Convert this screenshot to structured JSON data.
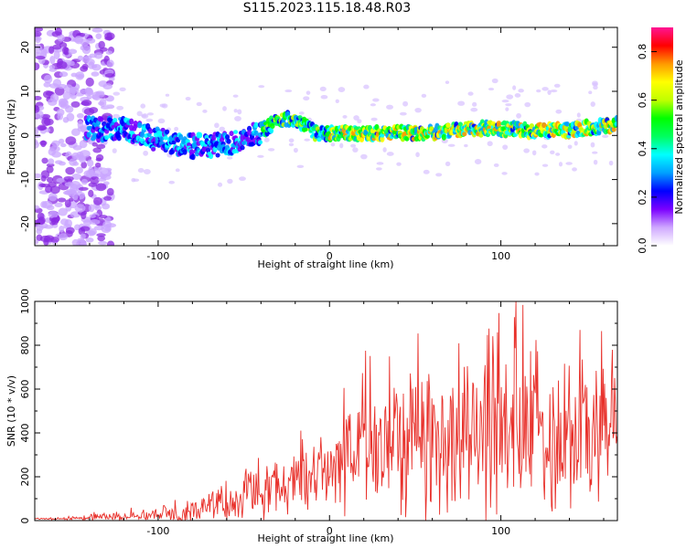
{
  "title": "S115.2023.115.18.48.R03",
  "chart_data": [
    {
      "type": "heatmap",
      "xlabel": "Height of straight line (km)",
      "ylabel": "Frequency (Hz)",
      "xlim": [
        -172,
        168
      ],
      "ylim": [
        -25,
        24.5
      ],
      "xticks": [
        -100,
        0,
        100
      ],
      "xtick_labels": [
        "-100",
        "0",
        "100"
      ],
      "yticks": [
        -20,
        -10,
        0,
        10,
        20
      ],
      "ytick_labels": [
        "-20",
        "-10",
        "0",
        "10",
        "20"
      ],
      "colorbar": {
        "label": "Normalized spectral amplitude",
        "range": [
          0,
          0.9
        ],
        "ticks": [
          0.0,
          0.2,
          0.4,
          0.6,
          0.8
        ],
        "tick_labels": [
          "0.0",
          "0.2",
          "0.4",
          "0.6",
          "0.8"
        ],
        "colors": [
          "#ffffff",
          "#cfa8ff",
          "#7b00ff",
          "#0000ff",
          "#00a0ff",
          "#00ffff",
          "#00ff60",
          "#00ff00",
          "#c0ff00",
          "#ffff00",
          "#ff9900",
          "#ff0000",
          "#ff1493"
        ]
      },
      "ridge": {
        "x": [
          -140,
          -120,
          -100,
          -80,
          -60,
          -50,
          -40,
          -30,
          -22,
          -15,
          -8,
          0,
          20,
          40,
          60,
          80,
          100,
          120,
          140,
          168
        ],
        "y": [
          1.5,
          1.5,
          -1.0,
          -2.5,
          -2.0,
          -1.0,
          1.0,
          3.5,
          4.0,
          2.5,
          0.5,
          0.5,
          0.5,
          0.5,
          0.7,
          1.5,
          1.5,
          1.0,
          1.2,
          2.5
        ]
      }
    },
    {
      "type": "line",
      "xlabel": "Height of straight line (km)",
      "ylabel": "SNR (10 * v/v)",
      "xlim": [
        -172,
        168
      ],
      "ylim": [
        0,
        1000
      ],
      "xticks": [
        -100,
        0,
        100
      ],
      "xtick_labels": [
        "-100",
        "0",
        "100"
      ],
      "yticks": [
        0,
        200,
        400,
        600,
        800,
        1000
      ],
      "ytick_labels": [
        "0",
        "200",
        "400",
        "600",
        "800",
        "1000"
      ],
      "line_color": "#e8302a",
      "envelope": {
        "x": [
          -172,
          -150,
          -130,
          -110,
          -100,
          -80,
          -70,
          -60,
          -50,
          -40,
          -30,
          -20,
          -10,
          0,
          10,
          20,
          40,
          60,
          80,
          100,
          120,
          140,
          168
        ],
        "base": [
          8,
          10,
          18,
          25,
          30,
          45,
          60,
          80,
          110,
          130,
          150,
          180,
          210,
          240,
          290,
          330,
          380,
          380,
          390,
          400,
          410,
          420,
          420
        ],
        "spread": [
          6,
          8,
          25,
          30,
          35,
          60,
          80,
          100,
          130,
          140,
          150,
          170,
          180,
          200,
          300,
          380,
          420,
          430,
          440,
          460,
          470,
          480,
          480
        ]
      }
    }
  ]
}
